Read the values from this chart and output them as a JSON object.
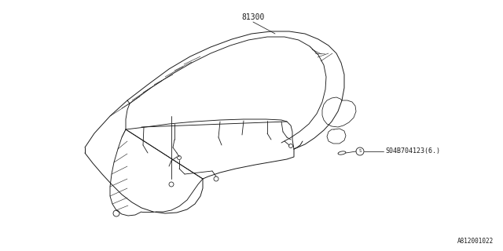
{
  "bg_color": "#ffffff",
  "line_color": "#1a1a1a",
  "diagram_ref": "A812001022",
  "part_label_1": "81300",
  "part_label_2": "S04B704123(6.)",
  "fig_width": 6.4,
  "fig_height": 3.2,
  "dpi": 100
}
